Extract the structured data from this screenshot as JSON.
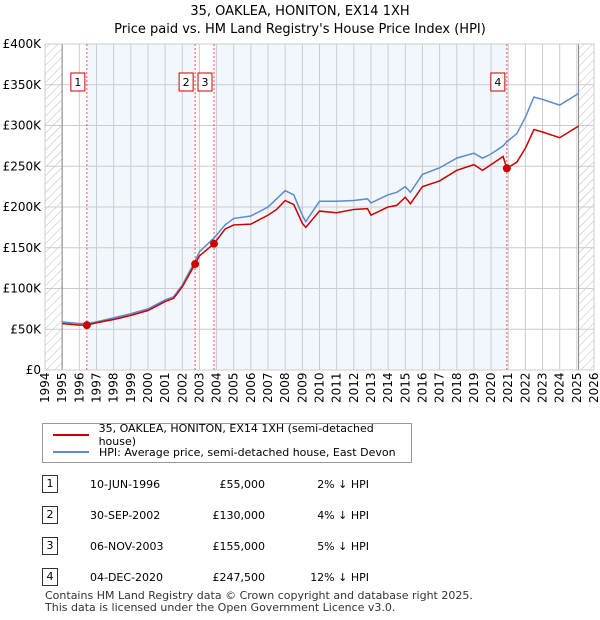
{
  "chart_data": {
    "type": "line",
    "title": "35, OAKLEA, HONITON, EX14 1XH",
    "subtitle": "Price paid vs. HM Land Registry's House Price Index (HPI)",
    "xlim": [
      1994,
      2026
    ],
    "ylim": [
      0,
      400000
    ],
    "x_ticks": [
      "1994",
      "1995",
      "1996",
      "1997",
      "1998",
      "1999",
      "2000",
      "2001",
      "2002",
      "2003",
      "2004",
      "2005",
      "2006",
      "2007",
      "2008",
      "2009",
      "2010",
      "2011",
      "2012",
      "2013",
      "2014",
      "2015",
      "2016",
      "2017",
      "2018",
      "2019",
      "2020",
      "2021",
      "2022",
      "2023",
      "2024",
      "2025",
      "2026"
    ],
    "y_ticks": [
      {
        "v": 0,
        "label": "£0"
      },
      {
        "v": 50000,
        "label": "£50K"
      },
      {
        "v": 100000,
        "label": "£100K"
      },
      {
        "v": 150000,
        "label": "£150K"
      },
      {
        "v": 200000,
        "label": "£200K"
      },
      {
        "v": 250000,
        "label": "£250K"
      },
      {
        "v": 300000,
        "label": "£300K"
      },
      {
        "v": 350000,
        "label": "£350K"
      },
      {
        "v": 400000,
        "label": "£400K"
      }
    ],
    "grid": true,
    "series": [
      {
        "name": "35, OAKLEA, HONITON, EX14 1XH (semi-detached house)",
        "color": "#cc0000",
        "x": [
          1995,
          1995.5,
          1996,
          1996.44,
          1997,
          1998,
          1999,
          2000,
          2001,
          2001.5,
          2002,
          2002.75,
          2003,
          2003.85,
          2004.5,
          2005,
          2006,
          2007,
          2007.5,
          2008,
          2008.5,
          2009,
          2009.2,
          2010,
          2011,
          2012,
          2012.8,
          2013,
          2014,
          2014.5,
          2015,
          2015.3,
          2016,
          2017,
          2018,
          2019,
          2019.5,
          2020,
          2020.7,
          2020.92,
          2021.5,
          2022,
          2022.5,
          2023,
          2024,
          2025,
          2025.1
        ],
        "y": [
          57000,
          56000,
          55000,
          55000,
          58000,
          62000,
          67000,
          73000,
          84000,
          88000,
          102000,
          130000,
          140000,
          155000,
          173000,
          178000,
          179000,
          190000,
          197000,
          208000,
          203000,
          180000,
          175000,
          195000,
          193000,
          197000,
          198000,
          190000,
          200000,
          202000,
          212000,
          204000,
          225000,
          232000,
          245000,
          252000,
          245000,
          252000,
          262000,
          247500,
          255000,
          272000,
          295000,
          292000,
          285000,
          298000,
          299000
        ]
      },
      {
        "name": "HPI: Average price, semi-detached house, East Devon",
        "color": "#5b8bd0",
        "x": [
          1995,
          1995.5,
          1996,
          1996.44,
          1997,
          1998,
          1999,
          2000,
          2001,
          2001.5,
          2002,
          2002.75,
          2003,
          2003.85,
          2004.5,
          2005,
          2006,
          2007,
          2007.5,
          2008,
          2008.5,
          2009,
          2009.2,
          2010,
          2011,
          2012,
          2012.8,
          2013,
          2014,
          2014.5,
          2015,
          2015.3,
          2016,
          2017,
          2018,
          2019,
          2019.5,
          2020,
          2020.7,
          2020.92,
          2021.5,
          2022,
          2022.5,
          2023,
          2024,
          2025,
          2025.1
        ],
        "y": [
          59000,
          58000,
          57000,
          57000,
          59000,
          64000,
          69000,
          75000,
          86000,
          90000,
          104000,
          134000,
          145000,
          162000,
          178000,
          186000,
          189000,
          200000,
          210000,
          220000,
          215000,
          190000,
          182000,
          207000,
          207000,
          208000,
          210000,
          205000,
          215000,
          218000,
          225000,
          218000,
          240000,
          248000,
          260000,
          266000,
          260000,
          265000,
          275000,
          280000,
          290000,
          310000,
          335000,
          332000,
          325000,
          338000,
          340000
        ]
      }
    ],
    "sales": [
      {
        "id": "1",
        "x": 1996.44,
        "y": 55000
      },
      {
        "id": "2",
        "x": 2002.75,
        "y": 130000
      },
      {
        "id": "3",
        "x": 2003.85,
        "y": 155000
      },
      {
        "id": "4",
        "x": 2020.92,
        "y": 247500
      }
    ]
  },
  "legend": [
    {
      "label": "35, OAKLEA, HONITON, EX14 1XH (semi-detached house)",
      "color": "#cc0000"
    },
    {
      "label": "HPI: Average price, semi-detached house, East Devon",
      "color": "#5b8bd0"
    }
  ],
  "transactions": [
    {
      "id": "1",
      "date": "10-JUN-1996",
      "price": "£55,000",
      "hpi": "2% ↓ HPI"
    },
    {
      "id": "2",
      "date": "30-SEP-2002",
      "price": "£130,000",
      "hpi": "4% ↓ HPI"
    },
    {
      "id": "3",
      "date": "06-NOV-2003",
      "price": "£155,000",
      "hpi": "5% ↓ HPI"
    },
    {
      "id": "4",
      "date": "04-DEC-2020",
      "price": "£247,500",
      "hpi": "12% ↓ HPI"
    }
  ],
  "footer": [
    "Contains HM Land Registry data © Crown copyright and database right 2025.",
    "This data is licensed under the Open Government Licence v3.0."
  ]
}
